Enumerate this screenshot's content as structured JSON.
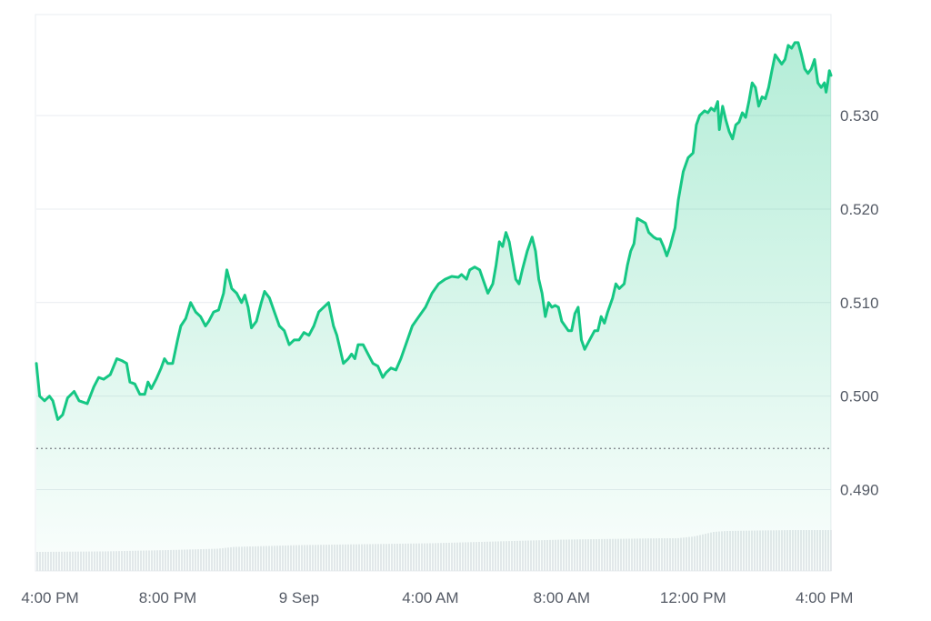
{
  "chart_data": {
    "type": "area",
    "title": "",
    "xlabel": "",
    "ylabel": "",
    "colors": {
      "line": "#16c784",
      "fill_top": "#16c784",
      "grid": "#e9ecf0",
      "baseline": "#7a7f87",
      "volume": "#e7e9ec",
      "axis_text": "#555b66"
    },
    "y_axis": {
      "position": "right",
      "ylim": [
        0.4813,
        0.5408
      ],
      "ticks": [
        {
          "value": 0.49,
          "label": "0.490"
        },
        {
          "value": 0.5,
          "label": "0.500"
        },
        {
          "value": 0.51,
          "label": "0.510"
        },
        {
          "value": 0.52,
          "label": "0.520"
        },
        {
          "value": 0.53,
          "label": "0.530"
        }
      ]
    },
    "x_axis": {
      "range_hours": [
        0,
        24.2
      ],
      "ticks": [
        {
          "hour": 0,
          "label": "4:00 PM"
        },
        {
          "hour": 4,
          "label": "8:00 PM"
        },
        {
          "hour": 8,
          "label": "9 Sep"
        },
        {
          "hour": 12,
          "label": "4:00 AM"
        },
        {
          "hour": 16,
          "label": "8:00 AM"
        },
        {
          "hour": 20,
          "label": "12:00 PM"
        },
        {
          "hour": 24,
          "label": "4:00 PM"
        }
      ]
    },
    "reference_line": {
      "value": 0.4944,
      "style": "dotted"
    },
    "grid": true,
    "price_series": {
      "name": "",
      "points": [
        [
          0.0,
          0.5035
        ],
        [
          0.1,
          0.5
        ],
        [
          0.25,
          0.4995
        ],
        [
          0.4,
          0.5
        ],
        [
          0.5,
          0.4995
        ],
        [
          0.65,
          0.4975
        ],
        [
          0.8,
          0.498
        ],
        [
          0.95,
          0.4998
        ],
        [
          1.15,
          0.5005
        ],
        [
          1.3,
          0.4995
        ],
        [
          1.55,
          0.4992
        ],
        [
          1.75,
          0.501
        ],
        [
          1.9,
          0.502
        ],
        [
          2.05,
          0.5018
        ],
        [
          2.25,
          0.5023
        ],
        [
          2.45,
          0.504
        ],
        [
          2.6,
          0.5038
        ],
        [
          2.75,
          0.5035
        ],
        [
          2.85,
          0.5015
        ],
        [
          3.0,
          0.5013
        ],
        [
          3.15,
          0.5002
        ],
        [
          3.3,
          0.5002
        ],
        [
          3.4,
          0.5015
        ],
        [
          3.5,
          0.5008
        ],
        [
          3.65,
          0.5018
        ],
        [
          3.8,
          0.503
        ],
        [
          3.9,
          0.504
        ],
        [
          4.0,
          0.5035
        ],
        [
          4.15,
          0.5035
        ],
        [
          4.3,
          0.506
        ],
        [
          4.4,
          0.5075
        ],
        [
          4.55,
          0.5083
        ],
        [
          4.7,
          0.51
        ],
        [
          4.85,
          0.509
        ],
        [
          5.0,
          0.5085
        ],
        [
          5.15,
          0.5075
        ],
        [
          5.25,
          0.508
        ],
        [
          5.4,
          0.509
        ],
        [
          5.55,
          0.5092
        ],
        [
          5.7,
          0.511
        ],
        [
          5.8,
          0.5135
        ],
        [
          5.95,
          0.5115
        ],
        [
          6.1,
          0.511
        ],
        [
          6.25,
          0.51
        ],
        [
          6.35,
          0.5108
        ],
        [
          6.45,
          0.5095
        ],
        [
          6.55,
          0.5073
        ],
        [
          6.7,
          0.508
        ],
        [
          6.85,
          0.51
        ],
        [
          6.95,
          0.5112
        ],
        [
          7.1,
          0.5105
        ],
        [
          7.25,
          0.509
        ],
        [
          7.4,
          0.5075
        ],
        [
          7.55,
          0.507
        ],
        [
          7.7,
          0.5055
        ],
        [
          7.85,
          0.506
        ],
        [
          8.0,
          0.506
        ],
        [
          8.15,
          0.5068
        ],
        [
          8.3,
          0.5065
        ],
        [
          8.45,
          0.5075
        ],
        [
          8.6,
          0.509
        ],
        [
          8.75,
          0.5095
        ],
        [
          8.9,
          0.51
        ],
        [
          9.05,
          0.5075
        ],
        [
          9.15,
          0.5065
        ],
        [
          9.25,
          0.505
        ],
        [
          9.35,
          0.5035
        ],
        [
          9.5,
          0.504
        ],
        [
          9.6,
          0.5045
        ],
        [
          9.7,
          0.504
        ],
        [
          9.8,
          0.5055
        ],
        [
          9.95,
          0.5055
        ],
        [
          10.1,
          0.5045
        ],
        [
          10.25,
          0.5035
        ],
        [
          10.4,
          0.5032
        ],
        [
          10.55,
          0.502
        ],
        [
          10.65,
          0.5025
        ],
        [
          10.8,
          0.503
        ],
        [
          10.95,
          0.5028
        ],
        [
          11.1,
          0.504
        ],
        [
          11.25,
          0.5055
        ],
        [
          11.45,
          0.5075
        ],
        [
          11.65,
          0.5085
        ],
        [
          11.85,
          0.5095
        ],
        [
          12.05,
          0.511
        ],
        [
          12.25,
          0.512
        ],
        [
          12.45,
          0.5125
        ],
        [
          12.65,
          0.5128
        ],
        [
          12.85,
          0.5127
        ],
        [
          12.95,
          0.513
        ],
        [
          13.1,
          0.5125
        ],
        [
          13.2,
          0.5135
        ],
        [
          13.35,
          0.5138
        ],
        [
          13.5,
          0.5135
        ],
        [
          13.6,
          0.5125
        ],
        [
          13.75,
          0.511
        ],
        [
          13.9,
          0.512
        ],
        [
          14.0,
          0.514
        ],
        [
          14.1,
          0.5165
        ],
        [
          14.2,
          0.516
        ],
        [
          14.3,
          0.5175
        ],
        [
          14.4,
          0.5165
        ],
        [
          14.5,
          0.5145
        ],
        [
          14.6,
          0.5125
        ],
        [
          14.7,
          0.512
        ],
        [
          14.8,
          0.5135
        ],
        [
          14.95,
          0.5155
        ],
        [
          15.1,
          0.517
        ],
        [
          15.2,
          0.5155
        ],
        [
          15.3,
          0.5125
        ],
        [
          15.4,
          0.511
        ],
        [
          15.5,
          0.5085
        ],
        [
          15.6,
          0.51
        ],
        [
          15.7,
          0.5095
        ],
        [
          15.8,
          0.5097
        ],
        [
          15.9,
          0.5095
        ],
        [
          16.0,
          0.508
        ],
        [
          16.1,
          0.5075
        ],
        [
          16.2,
          0.507
        ],
        [
          16.3,
          0.507
        ],
        [
          16.4,
          0.5088
        ],
        [
          16.5,
          0.5095
        ],
        [
          16.6,
          0.506
        ],
        [
          16.7,
          0.505
        ],
        [
          16.85,
          0.506
        ],
        [
          17.0,
          0.507
        ],
        [
          17.1,
          0.507
        ],
        [
          17.2,
          0.5085
        ],
        [
          17.3,
          0.5078
        ],
        [
          17.4,
          0.509
        ],
        [
          17.55,
          0.5105
        ],
        [
          17.65,
          0.512
        ],
        [
          17.75,
          0.5115
        ],
        [
          17.9,
          0.512
        ],
        [
          18.0,
          0.514
        ],
        [
          18.1,
          0.5155
        ],
        [
          18.2,
          0.5163
        ],
        [
          18.3,
          0.519
        ],
        [
          18.4,
          0.5188
        ],
        [
          18.55,
          0.5185
        ],
        [
          18.65,
          0.5175
        ],
        [
          18.8,
          0.517
        ],
        [
          18.9,
          0.5168
        ],
        [
          19.0,
          0.5168
        ],
        [
          19.1,
          0.516
        ],
        [
          19.2,
          0.515
        ],
        [
          19.3,
          0.516
        ],
        [
          19.45,
          0.518
        ],
        [
          19.55,
          0.521
        ],
        [
          19.7,
          0.524
        ],
        [
          19.85,
          0.5255
        ],
        [
          20.0,
          0.526
        ],
        [
          20.1,
          0.529
        ],
        [
          20.2,
          0.53
        ],
        [
          20.35,
          0.5305
        ],
        [
          20.45,
          0.5303
        ],
        [
          20.55,
          0.5308
        ],
        [
          20.65,
          0.5305
        ],
        [
          20.75,
          0.5315
        ],
        [
          20.8,
          0.5285
        ],
        [
          20.9,
          0.531
        ],
        [
          21.0,
          0.5295
        ],
        [
          21.1,
          0.5283
        ],
        [
          21.2,
          0.5275
        ],
        [
          21.3,
          0.529
        ],
        [
          21.4,
          0.5293
        ],
        [
          21.5,
          0.5303
        ],
        [
          21.6,
          0.5298
        ],
        [
          21.7,
          0.5315
        ],
        [
          21.8,
          0.5335
        ],
        [
          21.9,
          0.533
        ],
        [
          22.0,
          0.531
        ],
        [
          22.1,
          0.532
        ],
        [
          22.2,
          0.5318
        ],
        [
          22.3,
          0.533
        ],
        [
          22.4,
          0.5348
        ],
        [
          22.5,
          0.5365
        ],
        [
          22.6,
          0.536
        ],
        [
          22.7,
          0.5355
        ],
        [
          22.8,
          0.536
        ],
        [
          22.9,
          0.5375
        ],
        [
          23.0,
          0.5372
        ],
        [
          23.1,
          0.5378
        ],
        [
          23.2,
          0.5378
        ],
        [
          23.3,
          0.5365
        ],
        [
          23.4,
          0.535
        ],
        [
          23.5,
          0.5345
        ],
        [
          23.6,
          0.535
        ],
        [
          23.7,
          0.536
        ],
        [
          23.8,
          0.5335
        ],
        [
          23.9,
          0.533
        ],
        [
          24.0,
          0.5335
        ],
        [
          24.05,
          0.5325
        ],
        [
          24.1,
          0.5335
        ],
        [
          24.15,
          0.5348
        ],
        [
          24.2,
          0.5343
        ]
      ]
    },
    "volume_series": {
      "name": "",
      "points": [
        [
          0.0,
          0.21
        ],
        [
          2.0,
          0.215
        ],
        [
          4.0,
          0.23
        ],
        [
          5.5,
          0.245
        ],
        [
          6.0,
          0.265
        ],
        [
          7.0,
          0.275
        ],
        [
          8.0,
          0.285
        ],
        [
          10.0,
          0.295
        ],
        [
          12.0,
          0.305
        ],
        [
          14.0,
          0.325
        ],
        [
          16.0,
          0.345
        ],
        [
          18.0,
          0.355
        ],
        [
          19.0,
          0.36
        ],
        [
          19.5,
          0.36
        ],
        [
          20.0,
          0.38
        ],
        [
          20.6,
          0.43
        ],
        [
          21.0,
          0.44
        ],
        [
          22.0,
          0.445
        ],
        [
          23.0,
          0.45
        ],
        [
          24.2,
          0.45
        ]
      ]
    }
  }
}
